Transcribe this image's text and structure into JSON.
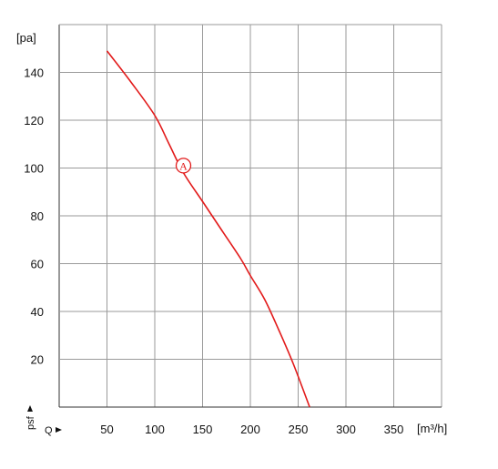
{
  "chart_data": {
    "type": "line",
    "title": "",
    "xlabel": "Q",
    "ylabel": "psf",
    "x_unit": "[m³/h]",
    "y_unit": "[pa]",
    "xlim": [
      0,
      400
    ],
    "ylim": [
      0,
      160
    ],
    "x_ticks": [
      50,
      100,
      150,
      200,
      250,
      300,
      350
    ],
    "y_ticks": [
      20,
      40,
      60,
      80,
      100,
      120,
      140
    ],
    "x_tick_labels": [
      "50",
      "100",
      "150",
      "200",
      "250",
      "300",
      "350"
    ],
    "y_tick_labels": [
      "20",
      "40",
      "60",
      "80",
      "100",
      "120",
      "140"
    ],
    "grid": true,
    "series": [
      {
        "name": "",
        "color": "#e21a1a",
        "x": [
          50,
          75,
          100,
          115,
          130,
          150,
          170,
          190,
          200,
          215,
          230,
          245,
          262
        ],
        "y": [
          149,
          136,
          122,
          110,
          98,
          86,
          74,
          62,
          55,
          45,
          32,
          18,
          0
        ]
      }
    ],
    "annotations": [
      {
        "label": "A",
        "x": 130,
        "y": 101
      }
    ]
  },
  "colors": {
    "grid": "#9a9a9a",
    "axis": "#333333",
    "curve": "#e21a1a"
  }
}
